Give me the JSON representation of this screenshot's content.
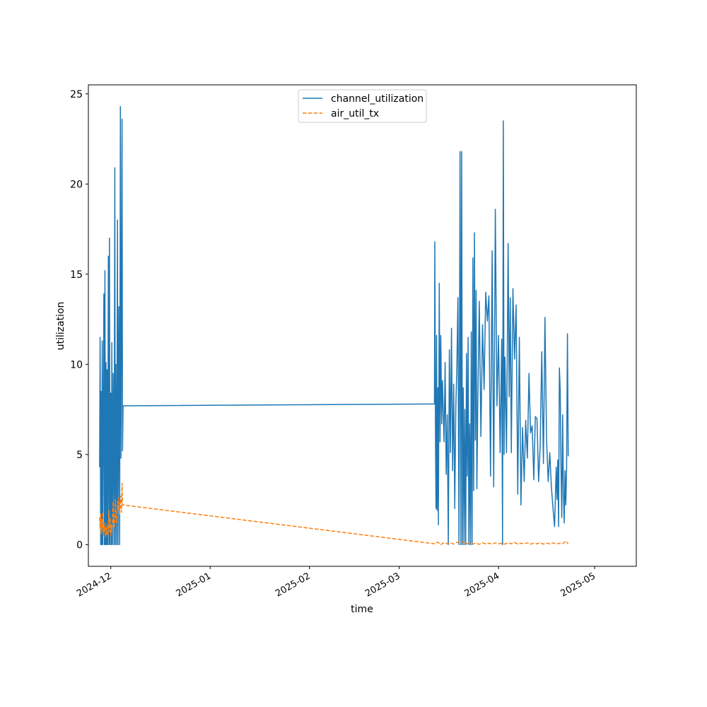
{
  "chart_data": {
    "type": "line",
    "title": "",
    "xlabel": "time",
    "ylabel": "utilization",
    "x_range": [
      "2024-11-24",
      "2025-05-14"
    ],
    "ylim": [
      -1.2,
      25.5
    ],
    "x_ticks": [
      {
        "date": "2024-12-01",
        "label": "2024-12"
      },
      {
        "date": "2025-01-01",
        "label": "2025-01"
      },
      {
        "date": "2025-02-01",
        "label": "2025-02"
      },
      {
        "date": "2025-03-01",
        "label": "2025-03"
      },
      {
        "date": "2025-04-01",
        "label": "2025-04"
      },
      {
        "date": "2025-05-01",
        "label": "2025-05"
      }
    ],
    "y_ticks": [
      {
        "value": 0,
        "label": "0"
      },
      {
        "value": 5,
        "label": "5"
      },
      {
        "value": 10,
        "label": "10"
      },
      {
        "value": 15,
        "label": "15"
      },
      {
        "value": 20,
        "label": "20"
      },
      {
        "value": 25,
        "label": "25"
      }
    ],
    "grid": false,
    "legend_position": "upper center",
    "series": [
      {
        "name": "channel_utilization",
        "color": "#1f77b4",
        "style": "solid",
        "points": [
          [
            "2024-11-27T12:00",
            4.3
          ],
          [
            "2024-11-27T16:00",
            11.5
          ],
          [
            "2024-11-27T20:00",
            0.0
          ],
          [
            "2024-11-28T00:00",
            8.5
          ],
          [
            "2024-11-28T04:00",
            0.0
          ],
          [
            "2024-11-28T08:00",
            11.3
          ],
          [
            "2024-11-28T12:00",
            0.0
          ],
          [
            "2024-11-28T16:00",
            7.2
          ],
          [
            "2024-11-28T20:00",
            13.9
          ],
          [
            "2024-11-29T00:00",
            0.0
          ],
          [
            "2024-11-29T04:00",
            15.2
          ],
          [
            "2024-11-29T08:00",
            0.0
          ],
          [
            "2024-11-29T12:00",
            10.1
          ],
          [
            "2024-11-29T16:00",
            0.0
          ],
          [
            "2024-11-29T20:00",
            9.7
          ],
          [
            "2024-11-30T00:00",
            0.0
          ],
          [
            "2024-11-30T06:00",
            16.0
          ],
          [
            "2024-11-30T10:00",
            0.0
          ],
          [
            "2024-11-30T14:00",
            17.0
          ],
          [
            "2024-11-30T18:00",
            0.0
          ],
          [
            "2024-12-01T00:00",
            8.4
          ],
          [
            "2024-12-01T04:00",
            0.0
          ],
          [
            "2024-12-01T08:00",
            11.2
          ],
          [
            "2024-12-01T12:00",
            0.0
          ],
          [
            "2024-12-01T18:00",
            9.5
          ],
          [
            "2024-12-02T00:00",
            0.0
          ],
          [
            "2024-12-02T06:00",
            20.9
          ],
          [
            "2024-12-02T10:00",
            0.0
          ],
          [
            "2024-12-02T14:00",
            10.0
          ],
          [
            "2024-12-02T20:00",
            0.0
          ],
          [
            "2024-12-03T02:00",
            18.0
          ],
          [
            "2024-12-03T06:00",
            0.0
          ],
          [
            "2024-12-03T12:00",
            13.2
          ],
          [
            "2024-12-03T18:00",
            0.0
          ],
          [
            "2024-12-04T00:00",
            24.3
          ],
          [
            "2024-12-04T04:00",
            4.8
          ],
          [
            "2024-12-04T08:00",
            11.7
          ],
          [
            "2024-12-04T12:00",
            23.6
          ],
          [
            "2024-12-04T16:00",
            5.2
          ],
          [
            "2024-12-04T20:00",
            7.7
          ],
          [
            "2025-03-12T00:00",
            7.8
          ],
          [
            "2025-03-12T03:00",
            16.8
          ],
          [
            "2025-03-12T08:00",
            5.8
          ],
          [
            "2025-03-12T12:00",
            2.0
          ],
          [
            "2025-03-12T16:00",
            11.6
          ],
          [
            "2025-03-12T20:00",
            1.9
          ],
          [
            "2025-03-13T02:00",
            8.7
          ],
          [
            "2025-03-13T06:00",
            1.1
          ],
          [
            "2025-03-13T12:00",
            14.5
          ],
          [
            "2025-03-13T18:00",
            5.7
          ],
          [
            "2025-03-14T00:00",
            11.6
          ],
          [
            "2025-03-14T06:00",
            6.7
          ],
          [
            "2025-03-14T12:00",
            9.1
          ],
          [
            "2025-03-15T00:00",
            5.7
          ],
          [
            "2025-03-15T08:00",
            10.1
          ],
          [
            "2025-03-15T16:00",
            3.9
          ],
          [
            "2025-03-16T00:00",
            7.2
          ],
          [
            "2025-03-16T08:00",
            0.0
          ],
          [
            "2025-03-16T16:00",
            10.8
          ],
          [
            "2025-03-17T00:00",
            5.1
          ],
          [
            "2025-03-17T08:00",
            12.0
          ],
          [
            "2025-03-17T16:00",
            4.1
          ],
          [
            "2025-03-18T00:00",
            8.9
          ],
          [
            "2025-03-18T08:00",
            2.0
          ],
          [
            "2025-03-18T16:00",
            7.6
          ],
          [
            "2025-03-19T00:00",
            9.8
          ],
          [
            "2025-03-19T08:00",
            13.7
          ],
          [
            "2025-03-19T16:00",
            0.0
          ],
          [
            "2025-03-20T00:00",
            21.8
          ],
          [
            "2025-03-20T06:00",
            0.0
          ],
          [
            "2025-03-20T12:00",
            21.8
          ],
          [
            "2025-03-20T18:00",
            0.0
          ],
          [
            "2025-03-21T00:00",
            8.7
          ],
          [
            "2025-03-21T06:00",
            0.0
          ],
          [
            "2025-03-21T12:00",
            7.5
          ],
          [
            "2025-03-21T18:00",
            0.0
          ],
          [
            "2025-03-22T00:00",
            10.6
          ],
          [
            "2025-03-22T06:00",
            3.8
          ],
          [
            "2025-03-22T12:00",
            11.5
          ],
          [
            "2025-03-22T18:00",
            0.0
          ],
          [
            "2025-03-23T00:00",
            6.7
          ],
          [
            "2025-03-23T06:00",
            0.0
          ],
          [
            "2025-03-23T12:00",
            11.8
          ],
          [
            "2025-03-23T18:00",
            0.0
          ],
          [
            "2025-03-24T00:00",
            15.9
          ],
          [
            "2025-03-24T06:00",
            3.0
          ],
          [
            "2025-03-24T12:00",
            17.3
          ],
          [
            "2025-03-24T18:00",
            5.8
          ],
          [
            "2025-03-25T00:00",
            14.1
          ],
          [
            "2025-03-25T06:00",
            3.1
          ],
          [
            "2025-03-25T12:00",
            7.6
          ],
          [
            "2025-03-26T00:00",
            13.5
          ],
          [
            "2025-03-26T12:00",
            6.0
          ],
          [
            "2025-03-27T00:00",
            12.2
          ],
          [
            "2025-03-27T12:00",
            8.6
          ],
          [
            "2025-03-28T00:00",
            14.0
          ],
          [
            "2025-03-28T12:00",
            12.4
          ],
          [
            "2025-03-29T00:00",
            13.8
          ],
          [
            "2025-03-29T12:00",
            3.8
          ],
          [
            "2025-03-30T00:00",
            16.3
          ],
          [
            "2025-03-30T12:00",
            3.2
          ],
          [
            "2025-03-31T00:00",
            18.6
          ],
          [
            "2025-03-31T12:00",
            7.7
          ],
          [
            "2025-04-01T00:00",
            11.6
          ],
          [
            "2025-04-01T12:00",
            5.1
          ],
          [
            "2025-04-02T00:00",
            11.4
          ],
          [
            "2025-04-02T06:00",
            0.0
          ],
          [
            "2025-04-02T12:00",
            23.5
          ],
          [
            "2025-04-02T18:00",
            5.0
          ],
          [
            "2025-04-03T00:00",
            10.4
          ],
          [
            "2025-04-03T12:00",
            5.1
          ],
          [
            "2025-04-04T00:00",
            16.7
          ],
          [
            "2025-04-04T08:00",
            8.2
          ],
          [
            "2025-04-04T16:00",
            13.7
          ],
          [
            "2025-04-05T00:00",
            5.1
          ],
          [
            "2025-04-05T12:00",
            14.2
          ],
          [
            "2025-04-06T00:00",
            10.3
          ],
          [
            "2025-04-06T12:00",
            13.3
          ],
          [
            "2025-04-07T00:00",
            2.8
          ],
          [
            "2025-04-07T12:00",
            11.5
          ],
          [
            "2025-04-08T00:00",
            2.2
          ],
          [
            "2025-04-08T12:00",
            6.5
          ],
          [
            "2025-04-09T00:00",
            3.5
          ],
          [
            "2025-04-09T12:00",
            6.9
          ],
          [
            "2025-04-10T00:00",
            4.8
          ],
          [
            "2025-04-10T12:00",
            9.5
          ],
          [
            "2025-04-11T00:00",
            6.2
          ],
          [
            "2025-04-11T12:00",
            6.6
          ],
          [
            "2025-04-12T00:00",
            3.6
          ],
          [
            "2025-04-12T12:00",
            7.1
          ],
          [
            "2025-04-13T00:00",
            7.0
          ],
          [
            "2025-04-13T12:00",
            3.5
          ],
          [
            "2025-04-14T00:00",
            5.4
          ],
          [
            "2025-04-14T12:00",
            10.7
          ],
          [
            "2025-04-15T00:00",
            4.5
          ],
          [
            "2025-04-15T12:00",
            12.6
          ],
          [
            "2025-04-16T00:00",
            5.8
          ],
          [
            "2025-04-16T12:00",
            3.5
          ],
          [
            "2025-04-17T00:00",
            5.1
          ],
          [
            "2025-04-17T12:00",
            3.2
          ],
          [
            "2025-04-18T00:00",
            2.0
          ],
          [
            "2025-04-18T12:00",
            1.0
          ],
          [
            "2025-04-19T00:00",
            4.3
          ],
          [
            "2025-04-19T06:00",
            2.5
          ],
          [
            "2025-04-19T12:00",
            4.7
          ],
          [
            "2025-04-19T18:00",
            1.0
          ],
          [
            "2025-04-20T00:00",
            9.8
          ],
          [
            "2025-04-20T06:00",
            8.5
          ],
          [
            "2025-04-20T12:00",
            4.3
          ],
          [
            "2025-04-20T18:00",
            1.5
          ],
          [
            "2025-04-21T00:00",
            7.2
          ],
          [
            "2025-04-21T06:00",
            3.0
          ],
          [
            "2025-04-21T12:00",
            1.2
          ],
          [
            "2025-04-21T18:00",
            4.1
          ],
          [
            "2025-04-22T00:00",
            2.2
          ],
          [
            "2025-04-22T06:00",
            4.2
          ],
          [
            "2025-04-22T12:00",
            11.7
          ],
          [
            "2025-04-22T18:00",
            4.9
          ]
        ]
      },
      {
        "name": "air_util_tx",
        "color": "#ff7f0e",
        "style": "dashed",
        "points": [
          [
            "2024-11-27T12:00",
            1.5
          ],
          [
            "2024-11-27T16:00",
            0.9
          ],
          [
            "2024-11-27T20:00",
            1.7
          ],
          [
            "2024-11-28T00:00",
            0.6
          ],
          [
            "2024-11-28T04:00",
            1.4
          ],
          [
            "2024-11-28T08:00",
            0.8
          ],
          [
            "2024-11-28T12:00",
            1.8
          ],
          [
            "2024-11-28T16:00",
            0.5
          ],
          [
            "2024-11-28T20:00",
            1.0
          ],
          [
            "2024-11-29T00:00",
            0.7
          ],
          [
            "2024-11-29T04:00",
            1.2
          ],
          [
            "2024-11-29T08:00",
            0.4
          ],
          [
            "2024-11-29T12:00",
            0.9
          ],
          [
            "2024-11-29T16:00",
            0.6
          ],
          [
            "2024-11-29T20:00",
            1.1
          ],
          [
            "2024-11-30T00:00",
            0.5
          ],
          [
            "2024-11-30T06:00",
            0.8
          ],
          [
            "2024-11-30T10:00",
            1.9
          ],
          [
            "2024-11-30T14:00",
            0.7
          ],
          [
            "2024-11-30T18:00",
            1.5
          ],
          [
            "2024-12-01T00:00",
            0.5
          ],
          [
            "2024-12-01T04:00",
            1.1
          ],
          [
            "2024-12-01T08:00",
            0.7
          ],
          [
            "2024-12-01T12:00",
            1.6
          ],
          [
            "2024-12-01T18:00",
            2.4
          ],
          [
            "2024-12-02T00:00",
            1.0
          ],
          [
            "2024-12-02T06:00",
            1.4
          ],
          [
            "2024-12-02T10:00",
            2.5
          ],
          [
            "2024-12-02T14:00",
            1.6
          ],
          [
            "2024-12-02T20:00",
            1.2
          ],
          [
            "2024-12-03T02:00",
            2.4
          ],
          [
            "2024-12-03T06:00",
            1.9
          ],
          [
            "2024-12-03T12:00",
            2.6
          ],
          [
            "2024-12-03T18:00",
            1.7
          ],
          [
            "2024-12-04T00:00",
            2.3
          ],
          [
            "2024-12-04T04:00",
            2.7
          ],
          [
            "2024-12-04T08:00",
            1.8
          ],
          [
            "2024-12-04T12:00",
            3.4
          ],
          [
            "2024-12-04T16:00",
            2.2
          ],
          [
            "2024-12-04T20:00",
            2.2
          ],
          [
            "2025-03-12T00:00",
            0.05
          ],
          [
            "2025-03-13T00:00",
            0.15
          ],
          [
            "2025-03-14T00:00",
            0.0
          ],
          [
            "2025-03-15T00:00",
            0.12
          ],
          [
            "2025-03-16T00:00",
            0.05
          ],
          [
            "2025-03-17T00:00",
            0.1
          ],
          [
            "2025-03-18T00:00",
            0.03
          ],
          [
            "2025-03-19T00:00",
            0.12
          ],
          [
            "2025-03-20T00:00",
            0.2
          ],
          [
            "2025-03-21T00:00",
            0.15
          ],
          [
            "2025-03-22T00:00",
            0.05
          ],
          [
            "2025-03-23T00:00",
            0.1
          ],
          [
            "2025-03-24T00:00",
            0.05
          ],
          [
            "2025-03-25T00:00",
            0.08
          ],
          [
            "2025-03-26T00:00",
            0.02
          ],
          [
            "2025-03-27T00:00",
            0.1
          ],
          [
            "2025-03-28T00:00",
            0.05
          ],
          [
            "2025-03-29T00:00",
            0.08
          ],
          [
            "2025-03-30T00:00",
            0.03
          ],
          [
            "2025-03-31T00:00",
            0.1
          ],
          [
            "2025-04-01T00:00",
            0.05
          ],
          [
            "2025-04-02T00:00",
            0.08
          ],
          [
            "2025-04-03T00:00",
            0.03
          ],
          [
            "2025-04-04T00:00",
            0.1
          ],
          [
            "2025-04-05T00:00",
            0.05
          ],
          [
            "2025-04-06T00:00",
            0.12
          ],
          [
            "2025-04-07T00:00",
            0.03
          ],
          [
            "2025-04-08T00:00",
            0.08
          ],
          [
            "2025-04-09T00:00",
            0.05
          ],
          [
            "2025-04-10T00:00",
            0.1
          ],
          [
            "2025-04-11T00:00",
            0.03
          ],
          [
            "2025-04-12T00:00",
            0.08
          ],
          [
            "2025-04-13T00:00",
            0.05
          ],
          [
            "2025-04-14T00:00",
            0.1
          ],
          [
            "2025-04-15T00:00",
            0.03
          ],
          [
            "2025-04-16T00:00",
            0.08
          ],
          [
            "2025-04-17T00:00",
            0.05
          ],
          [
            "2025-04-18T00:00",
            0.1
          ],
          [
            "2025-04-19T00:00",
            0.03
          ],
          [
            "2025-04-20T00:00",
            0.08
          ],
          [
            "2025-04-21T00:00",
            0.05
          ],
          [
            "2025-04-22T00:00",
            0.2
          ],
          [
            "2025-04-22T18:00",
            0.05
          ]
        ]
      }
    ]
  }
}
